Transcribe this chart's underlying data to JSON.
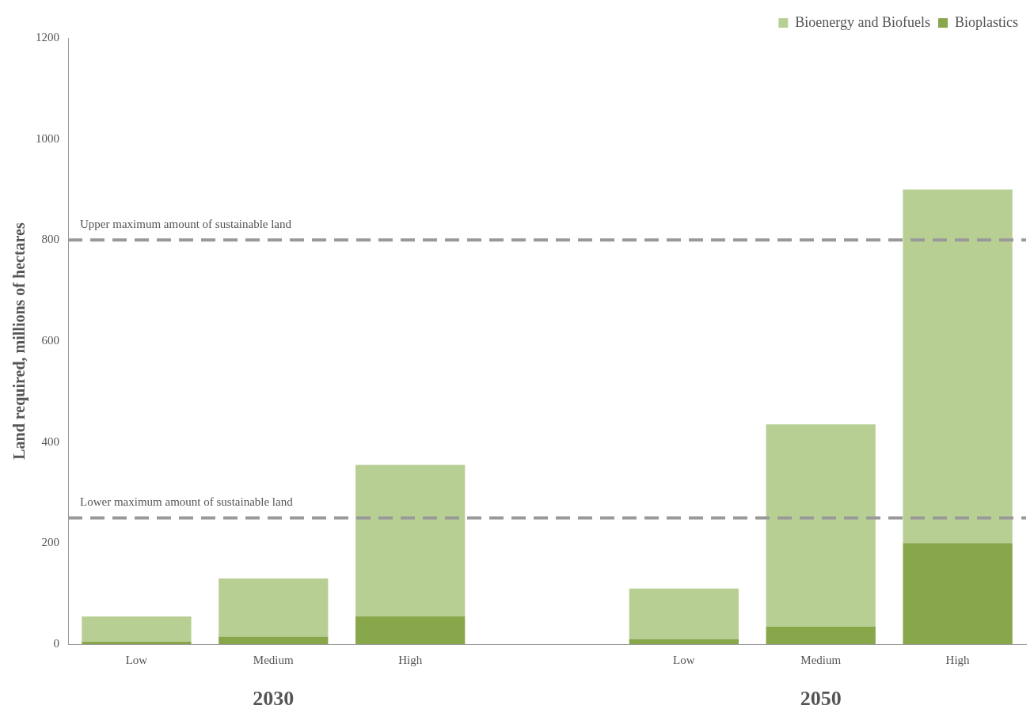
{
  "chart_data": {
    "type": "bar",
    "stacked": true,
    "ylabel": "Land required, millions of hectares",
    "categories": [
      "Low",
      "Medium",
      "High",
      null,
      "Low",
      "Medium",
      "High"
    ],
    "series": [
      {
        "name": "Bioplastics",
        "color": "#88a64a",
        "values": [
          5,
          15,
          55,
          null,
          10,
          35,
          200
        ]
      },
      {
        "name": "Bioenergy and Biofuels",
        "color": "#b8cf94",
        "values": [
          50,
          115,
          300,
          null,
          100,
          400,
          700
        ]
      }
    ],
    "ylim": [
      0,
      1200
    ],
    "yticks": [
      0,
      200,
      400,
      600,
      800,
      1000,
      1200
    ],
    "grid": false,
    "legend": "top right",
    "ref_lines": [
      {
        "axis": "y",
        "value": 800,
        "label": "Upper maximum amount of sustainable land",
        "color": "#999999",
        "line_style": "dashed"
      },
      {
        "axis": "y",
        "value": 250,
        "label": "Lower maximum amount of sustainable land",
        "color": "#999999",
        "line_style": "dashed"
      }
    ],
    "annotations": [
      "2030",
      "2050"
    ]
  }
}
